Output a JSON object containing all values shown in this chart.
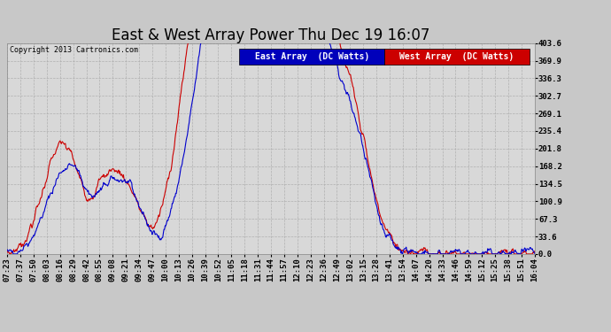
{
  "title": "East & West Array Power Thu Dec 19 16:07",
  "copyright": "Copyright 2013 Cartronics.com",
  "legend_east": "East Array  (DC Watts)",
  "legend_west": "West Array  (DC Watts)",
  "east_color": "#0000cc",
  "west_color": "#cc0000",
  "legend_east_bg": "#0000bb",
  "legend_west_bg": "#cc0000",
  "bg_color": "#c8c8c8",
  "plot_bg": "#d8d8d8",
  "grid_color": "#aaaaaa",
  "yticks": [
    0.0,
    33.6,
    67.3,
    100.9,
    134.5,
    168.2,
    201.8,
    235.4,
    269.1,
    302.7,
    336.3,
    369.9,
    403.6
  ],
  "ymax": 403.6,
  "xtick_labels": [
    "07:23",
    "07:37",
    "07:50",
    "08:03",
    "08:16",
    "08:29",
    "08:42",
    "08:55",
    "09:08",
    "09:21",
    "09:34",
    "09:47",
    "10:00",
    "10:13",
    "10:26",
    "10:39",
    "10:52",
    "11:05",
    "11:18",
    "11:31",
    "11:44",
    "11:57",
    "12:10",
    "12:23",
    "12:36",
    "12:49",
    "13:02",
    "13:15",
    "13:28",
    "13:41",
    "13:54",
    "14:07",
    "14:20",
    "14:33",
    "14:46",
    "14:59",
    "15:12",
    "15:25",
    "15:38",
    "15:51",
    "16:04"
  ],
  "title_fontsize": 12,
  "tick_fontsize": 6.5,
  "copyright_fontsize": 6,
  "legend_fontsize": 7,
  "line_width": 0.8,
  "t_total": 521
}
